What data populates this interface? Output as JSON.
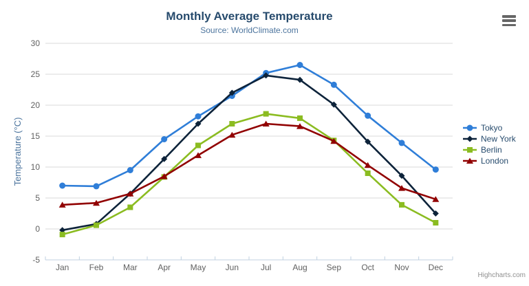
{
  "chart_data": {
    "type": "line",
    "title": "Monthly Average Temperature",
    "subtitle": "Source: WorldClimate.com",
    "xlabel": "",
    "ylabel": "Temperature (°C)",
    "categories": [
      "Jan",
      "Feb",
      "Mar",
      "Apr",
      "May",
      "Jun",
      "Jul",
      "Aug",
      "Sep",
      "Oct",
      "Nov",
      "Dec"
    ],
    "series": [
      {
        "name": "Tokyo",
        "color": "#2f7ed8",
        "marker": "circle",
        "values": [
          7.0,
          6.9,
          9.5,
          14.5,
          18.2,
          21.5,
          25.2,
          26.5,
          23.3,
          18.3,
          13.9,
          9.6
        ]
      },
      {
        "name": "New York",
        "color": "#0d233a",
        "marker": "diamond",
        "values": [
          -0.2,
          0.8,
          5.7,
          11.3,
          17.0,
          22.0,
          24.8,
          24.1,
          20.1,
          14.1,
          8.6,
          2.5
        ]
      },
      {
        "name": "Berlin",
        "color": "#8bbc21",
        "marker": "square",
        "values": [
          -0.9,
          0.6,
          3.5,
          8.4,
          13.5,
          17.0,
          18.6,
          17.9,
          14.3,
          9.0,
          3.9,
          1.0
        ]
      },
      {
        "name": "London",
        "color": "#910000",
        "marker": "triangle",
        "values": [
          3.9,
          4.2,
          5.7,
          8.5,
          11.9,
          15.2,
          17.0,
          16.6,
          14.2,
          10.3,
          6.6,
          4.8
        ]
      }
    ],
    "ylim": [
      -5,
      30
    ],
    "yticks": [
      -5,
      0,
      5,
      10,
      15,
      20,
      25,
      30
    ],
    "grid": true,
    "legend_position": "right",
    "credits": "Highcharts.com"
  },
  "colors": {
    "title": "#274b6d",
    "subtitle": "#4d759e",
    "axis_title": "#4d759e",
    "tick_labels": "#606060",
    "gridline": "#d8d8d8",
    "axis_line": "#c0d0e0",
    "legend_text": "#274b6d",
    "credits": "#909090",
    "menu_icon": "#666666",
    "background": "#ffffff"
  },
  "menu": {
    "icon": "hamburger-icon"
  }
}
